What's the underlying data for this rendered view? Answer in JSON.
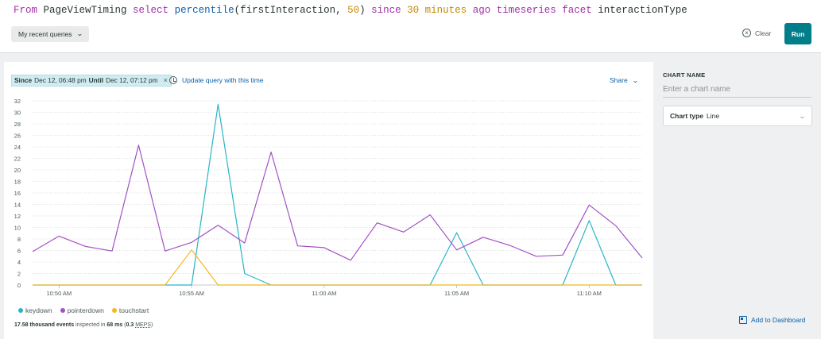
{
  "query": {
    "tokens": [
      {
        "text": "From ",
        "cls": "kw"
      },
      {
        "text": "PageViewTiming ",
        "cls": "plain"
      },
      {
        "text": "select ",
        "cls": "kw"
      },
      {
        "text": "percentile",
        "cls": "fn"
      },
      {
        "text": "(firstInteraction, ",
        "cls": "plain"
      },
      {
        "text": "50",
        "cls": "num"
      },
      {
        "text": ") ",
        "cls": "plain"
      },
      {
        "text": "since ",
        "cls": "kw"
      },
      {
        "text": "30 ",
        "cls": "num"
      },
      {
        "text": "minutes ",
        "cls": "num"
      },
      {
        "text": "ago ",
        "cls": "kw"
      },
      {
        "text": "timeseries ",
        "cls": "kw"
      },
      {
        "text": "facet ",
        "cls": "kw"
      },
      {
        "text": "interactionType",
        "cls": "plain"
      }
    ]
  },
  "toolbar": {
    "recent_queries_label": "My recent queries",
    "clear_label": "Clear",
    "run_label": "Run"
  },
  "time_range": {
    "since_label": "Since",
    "since_value": "Dec 12, 06:48 pm",
    "until_label": "Until",
    "until_value": "Dec 12, 07:12 pm",
    "update_link": "Update query with this time"
  },
  "share_label": "Share",
  "stats": {
    "events": "17.58 thousand events",
    "inspected_text": "inspected in",
    "ms_value": "68 ms",
    "meps_value": "0.3",
    "meps_unit": "MEPS"
  },
  "side_panel": {
    "chart_name_label": "CHART NAME",
    "chart_name_placeholder": "Enter a chart name",
    "chart_type_label": "Chart type",
    "chart_type_value": "Line",
    "add_dashboard_label": "Add to Dashboard"
  },
  "colors": {
    "keydown": "#28b5c7",
    "pointerdown": "#a352c5",
    "touchstart": "#f5b81c",
    "accent": "#007e8a"
  },
  "chart_data": {
    "type": "line",
    "x_tick_labels": [
      "10:50 AM",
      "10:55 AM",
      "11:00 AM",
      "11:05 AM",
      "11:10 AM"
    ],
    "x_tick_index": [
      1,
      6,
      11,
      16,
      21
    ],
    "y_ticks": [
      0,
      2,
      4,
      6,
      8,
      10,
      12,
      14,
      16,
      18,
      20,
      22,
      24,
      26,
      28,
      30,
      32
    ],
    "ylim": [
      0,
      32
    ],
    "x_count": 24,
    "grid": true,
    "legend_position": "bottom-left",
    "series": [
      {
        "name": "keydown",
        "color": "#28b5c7",
        "values": [
          0,
          0,
          0,
          0,
          0,
          0,
          0,
          31.4,
          2,
          0,
          0,
          0,
          0,
          0,
          0,
          0,
          9.1,
          0,
          0,
          0,
          0,
          11.2,
          0,
          0
        ]
      },
      {
        "name": "pointerdown",
        "color": "#a352c5",
        "values": [
          5.8,
          8.5,
          6.7,
          5.9,
          24.3,
          5.9,
          7.4,
          10.4,
          7.3,
          23.1,
          6.8,
          6.5,
          4.3,
          10.8,
          9.2,
          12.2,
          6.1,
          8.3,
          6.9,
          5,
          5.2,
          13.9,
          10.3,
          4.7
        ]
      },
      {
        "name": "touchstart",
        "color": "#f5b81c",
        "values": [
          0,
          0,
          0,
          0,
          0,
          0,
          6.1,
          0,
          0,
          0,
          0,
          0,
          0,
          0,
          0,
          0,
          0,
          0,
          0,
          0,
          0,
          0,
          0,
          0
        ]
      }
    ]
  }
}
